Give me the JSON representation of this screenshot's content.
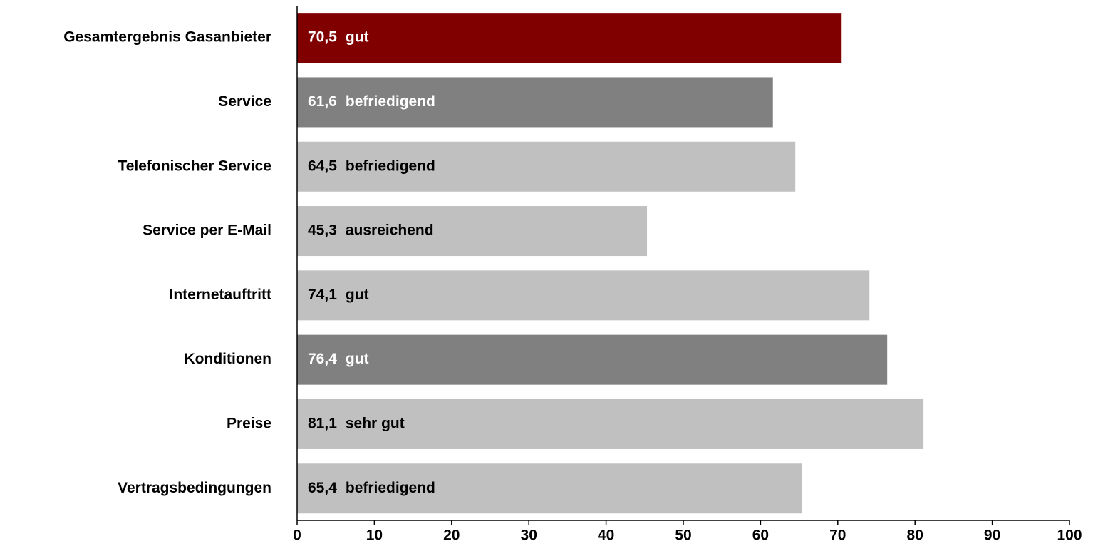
{
  "chart_data": {
    "type": "barh",
    "categories": [
      "Gesamtergebnis Gasanbieter",
      "Service",
      "Telefonischer Service",
      "Service per E-Mail",
      "Internetauftritt",
      "Konditionen",
      "Preise",
      "Vertragsbedingungen"
    ],
    "values": [
      70.5,
      61.6,
      64.5,
      45.3,
      74.1,
      76.4,
      81.1,
      65.4
    ],
    "value_labels": [
      "70,5",
      "61,6",
      "64,5",
      "45,3",
      "74,1",
      "76,4",
      "81,1",
      "65,4"
    ],
    "ratings": [
      "gut",
      "befriedigend",
      "befriedigend",
      "ausreichend",
      "gut",
      "gut",
      "sehr gut",
      "befriedigend"
    ],
    "colors": [
      "#800000",
      "#808080",
      "#c0c0c0",
      "#c0c0c0",
      "#c0c0c0",
      "#808080",
      "#c0c0c0",
      "#c0c0c0"
    ],
    "xlim": [
      0,
      100
    ],
    "xticks": [
      0,
      10,
      20,
      30,
      40,
      50,
      60,
      70,
      80,
      90,
      100
    ]
  }
}
